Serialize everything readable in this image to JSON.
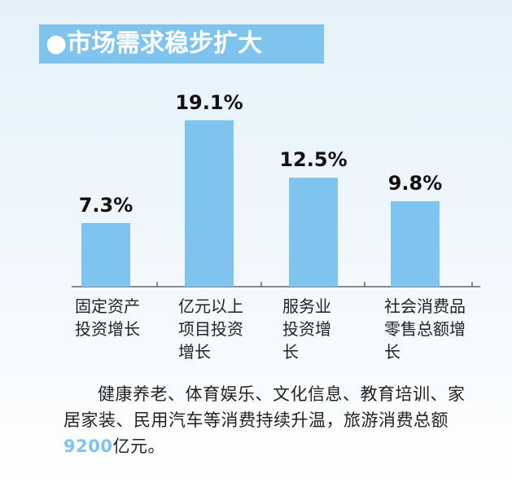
{
  "chart_data": {
    "type": "bar",
    "title": "●市场需求稳步扩大",
    "categories": [
      "固定资产投资增长",
      "亿元以上项目投资增长",
      "服务业投资增长",
      "社会消费品零售总额增长"
    ],
    "values": [
      7.3,
      19.1,
      12.5,
      9.8
    ],
    "value_labels": [
      "7.3%",
      "19.1%",
      "12.5%",
      "9.8%"
    ],
    "color": "#7fc4ee",
    "paragraph": [
      "健康养老、体育娱乐、文化信息、教育培训、家居家装、民用汽车等消费持续升温，旅游消费总额",
      "9200",
      "亿元。"
    ]
  }
}
